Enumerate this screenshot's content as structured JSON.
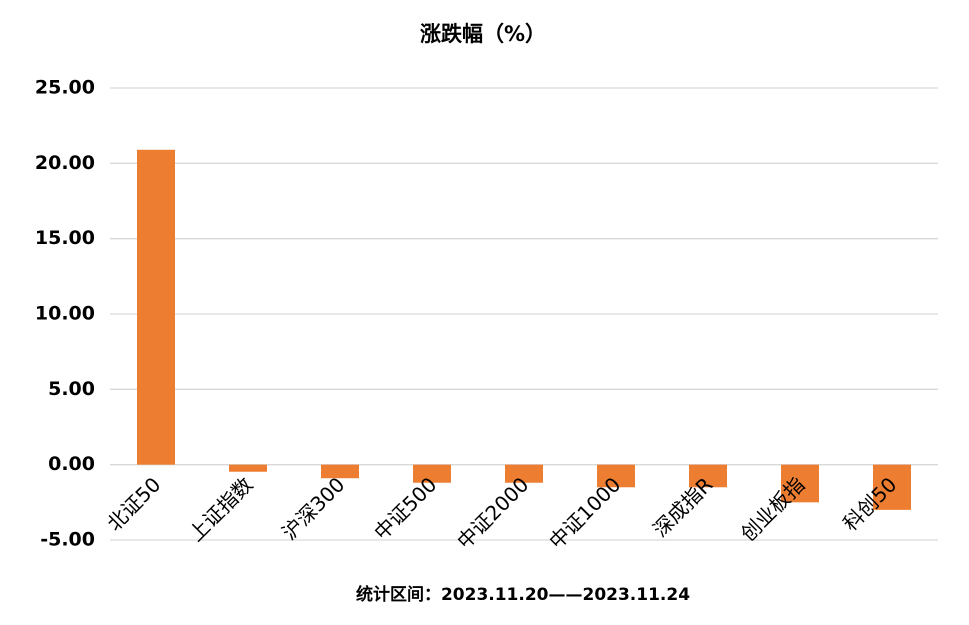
{
  "chart_data": {
    "type": "bar",
    "title": "涨跌幅（%）",
    "categories": [
      "北证50",
      "上证指数",
      "沪深300",
      "中证500",
      "中证2000",
      "中证1000",
      "深成指R",
      "创业板指",
      "科创50"
    ],
    "values": [
      20.9,
      -0.47,
      -0.9,
      -1.2,
      -1.2,
      -1.5,
      -1.5,
      -2.5,
      -3.0
    ],
    "color": "#ED7D31",
    "ylim": [
      -5,
      25
    ],
    "yticks": [
      {
        "value": -5,
        "label": "-5.00"
      },
      {
        "value": 0,
        "label": "0.00"
      },
      {
        "value": 5,
        "label": "5.00"
      },
      {
        "value": 10,
        "label": "10.00"
      },
      {
        "value": 15,
        "label": "15.00"
      },
      {
        "value": 20,
        "label": "20.00"
      },
      {
        "value": 25,
        "label": "25.00"
      }
    ],
    "grid": true,
    "annotation": "统计区间：2023.11.20——2023.11.24"
  }
}
